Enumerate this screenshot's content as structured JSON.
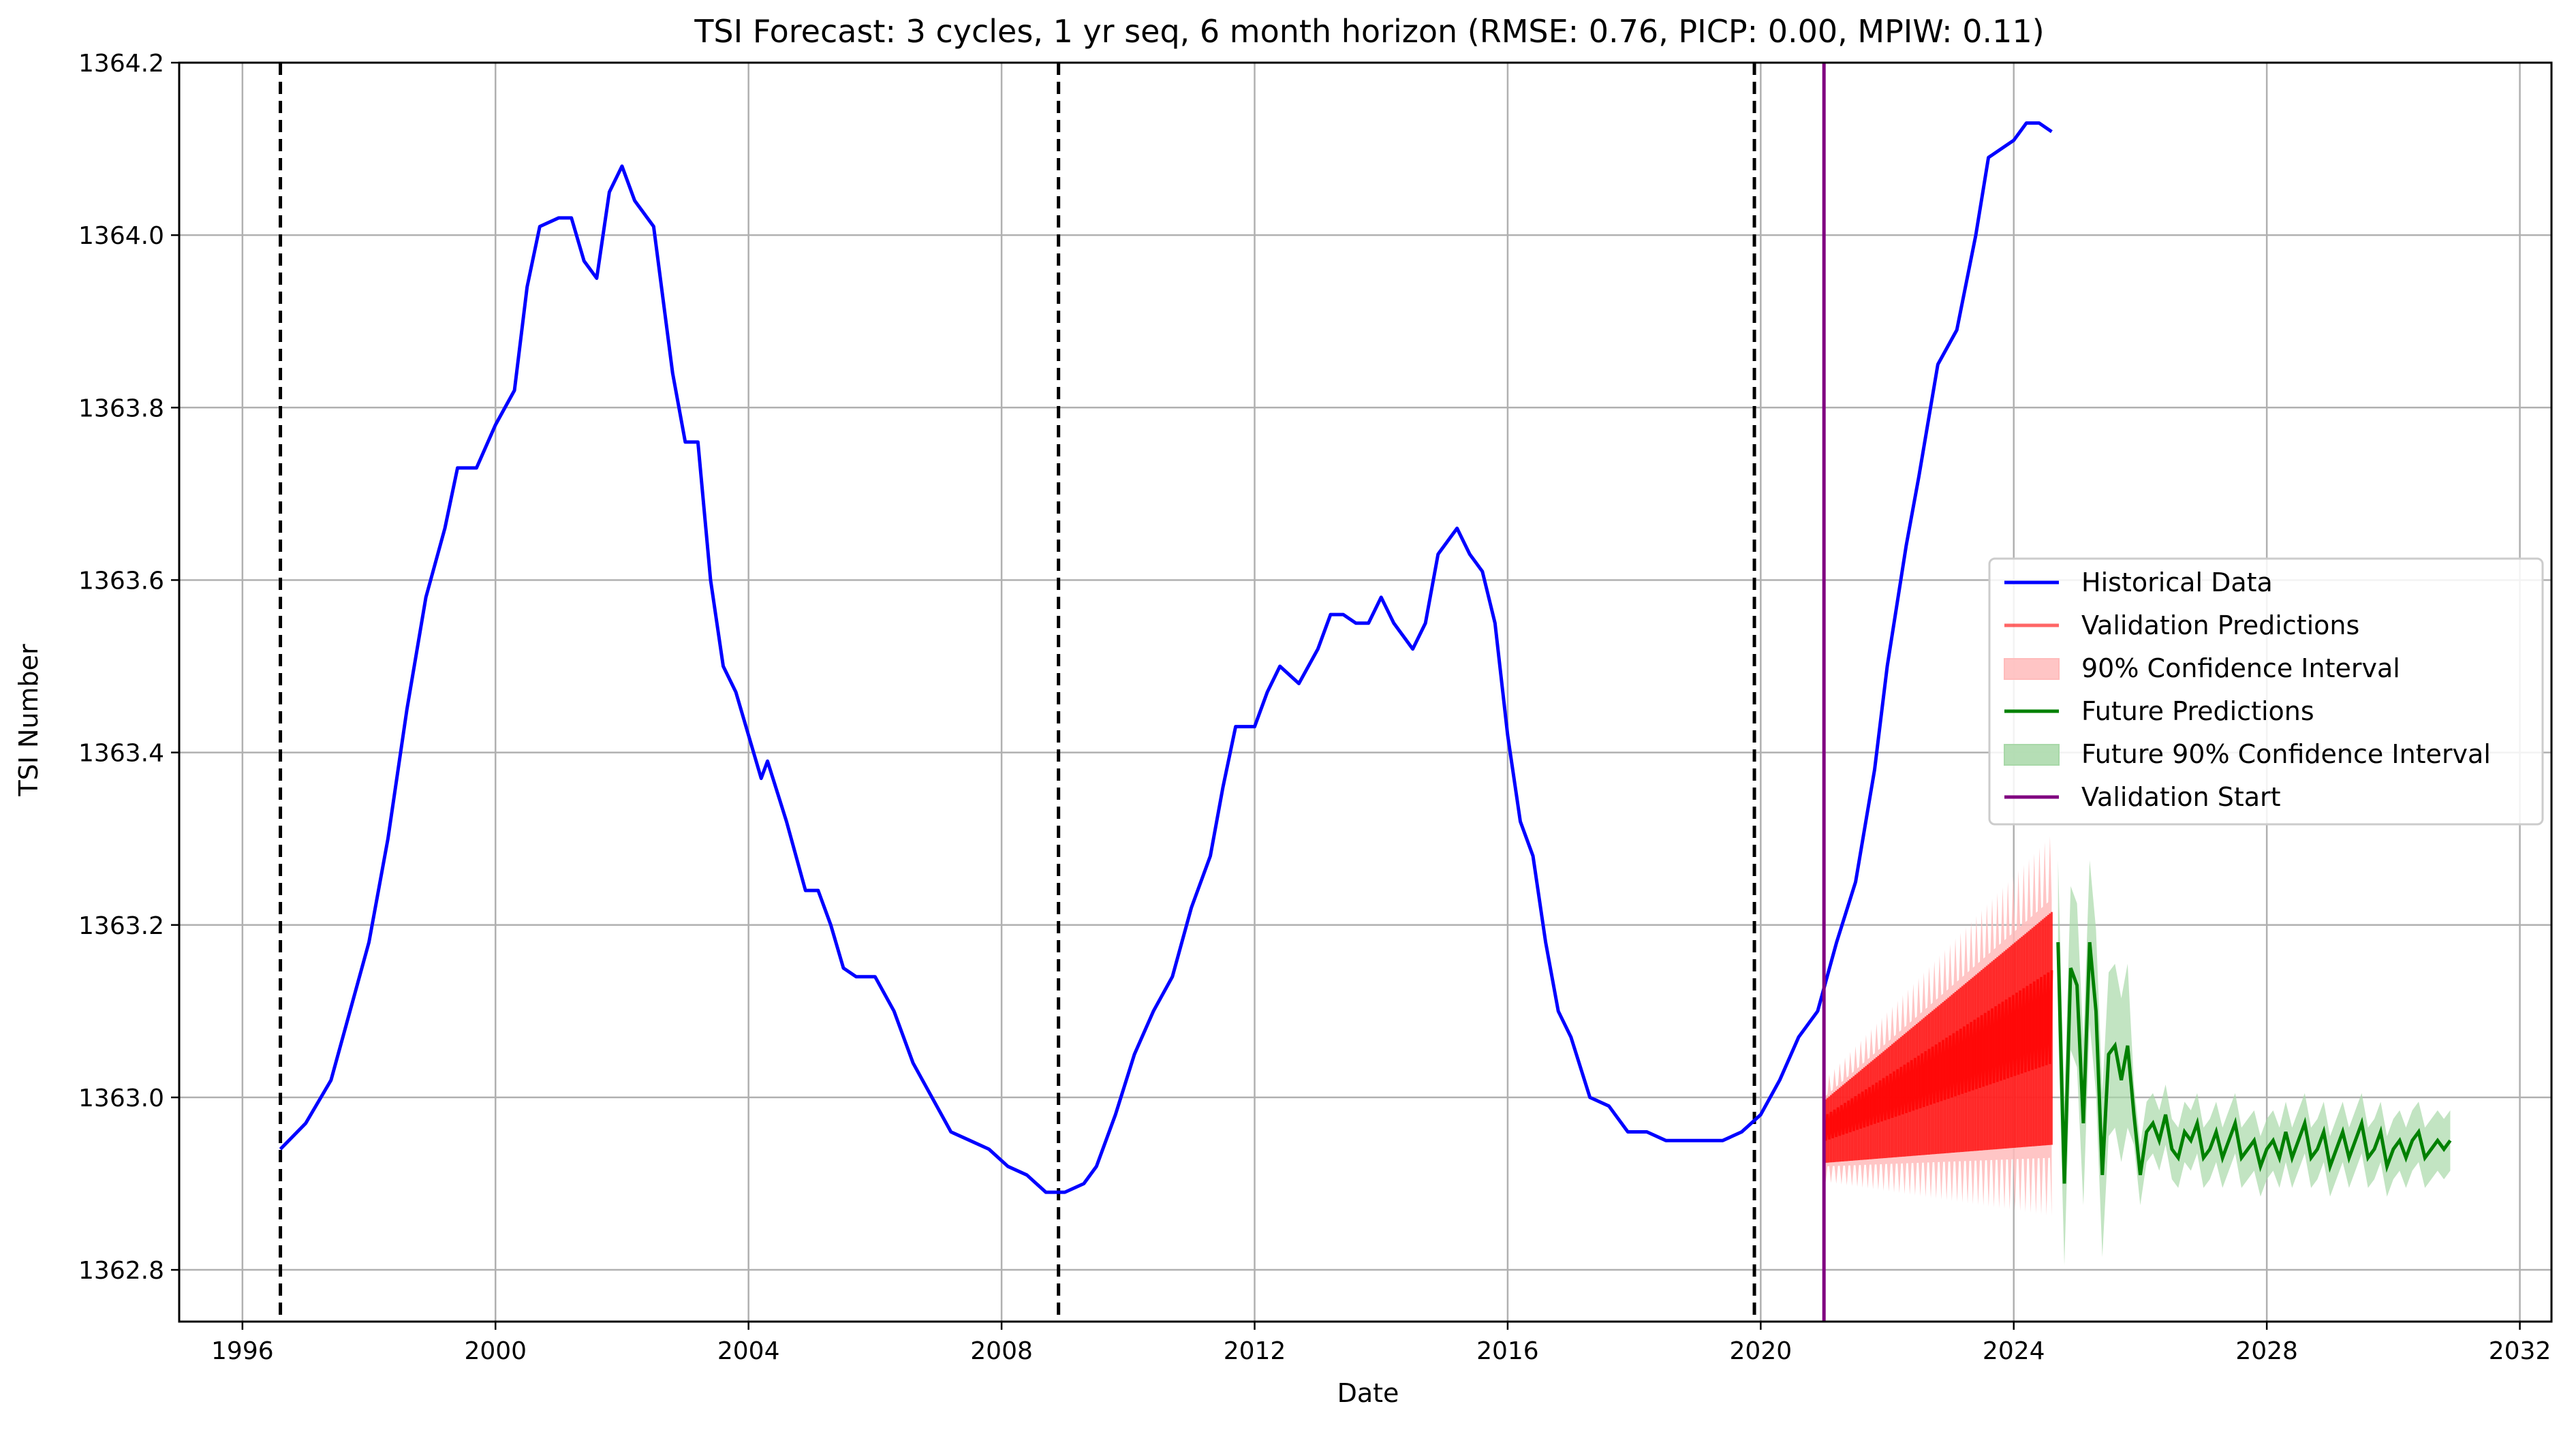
{
  "chart_data": {
    "type": "line",
    "title": "TSI Forecast: 3 cycles, 1 yr seq, 6 month horizon (RMSE: 0.76, PICP: 0.00, MPIW: 0.11)",
    "xlabel": "Date",
    "ylabel": "TSI Number",
    "xlim": [
      1995.0,
      2032.5
    ],
    "ylim": [
      1362.74,
      1364.2
    ],
    "x_ticks": [
      1996,
      2000,
      2004,
      2008,
      2012,
      2016,
      2020,
      2024,
      2028,
      2032
    ],
    "y_ticks": [
      1362.8,
      1363.0,
      1363.2,
      1363.4,
      1363.6,
      1363.8,
      1364.0,
      1364.2
    ],
    "y_tick_labels": [
      "1362.8",
      "1363.0",
      "1363.2",
      "1363.4",
      "1363.6",
      "1363.8",
      "1364.0",
      "1364.2"
    ],
    "grid": true,
    "legend_position": "center-right",
    "cycle_markers": [
      1996.6,
      2008.9,
      2019.9
    ],
    "validation_start": 2021.0,
    "series": [
      {
        "name": "Historical Data",
        "color": "#0000ff",
        "points": [
          [
            1996.6,
            1362.94
          ],
          [
            1997.0,
            1362.97
          ],
          [
            1997.4,
            1363.02
          ],
          [
            1997.7,
            1363.1
          ],
          [
            1998.0,
            1363.18
          ],
          [
            1998.3,
            1363.3
          ],
          [
            1998.6,
            1363.45
          ],
          [
            1998.9,
            1363.58
          ],
          [
            1999.2,
            1363.66
          ],
          [
            1999.4,
            1363.73
          ],
          [
            1999.7,
            1363.73
          ],
          [
            2000.0,
            1363.78
          ],
          [
            2000.3,
            1363.82
          ],
          [
            2000.5,
            1363.94
          ],
          [
            2000.7,
            1364.01
          ],
          [
            2001.0,
            1364.02
          ],
          [
            2001.2,
            1364.02
          ],
          [
            2001.4,
            1363.97
          ],
          [
            2001.6,
            1363.95
          ],
          [
            2001.8,
            1364.05
          ],
          [
            2002.0,
            1364.08
          ],
          [
            2002.2,
            1364.04
          ],
          [
            2002.5,
            1364.01
          ],
          [
            2002.8,
            1363.84
          ],
          [
            2003.0,
            1363.76
          ],
          [
            2003.2,
            1363.76
          ],
          [
            2003.4,
            1363.6
          ],
          [
            2003.6,
            1363.5
          ],
          [
            2003.8,
            1363.47
          ],
          [
            2004.0,
            1363.42
          ],
          [
            2004.2,
            1363.37
          ],
          [
            2004.3,
            1363.39
          ],
          [
            2004.6,
            1363.32
          ],
          [
            2004.9,
            1363.24
          ],
          [
            2005.1,
            1363.24
          ],
          [
            2005.3,
            1363.2
          ],
          [
            2005.5,
            1363.15
          ],
          [
            2005.7,
            1363.14
          ],
          [
            2006.0,
            1363.14
          ],
          [
            2006.3,
            1363.1
          ],
          [
            2006.6,
            1363.04
          ],
          [
            2006.9,
            1363.0
          ],
          [
            2007.2,
            1362.96
          ],
          [
            2007.5,
            1362.95
          ],
          [
            2007.8,
            1362.94
          ],
          [
            2008.1,
            1362.92
          ],
          [
            2008.4,
            1362.91
          ],
          [
            2008.7,
            1362.89
          ],
          [
            2009.0,
            1362.89
          ],
          [
            2009.3,
            1362.9
          ],
          [
            2009.5,
            1362.92
          ],
          [
            2009.8,
            1362.98
          ],
          [
            2010.1,
            1363.05
          ],
          [
            2010.4,
            1363.1
          ],
          [
            2010.7,
            1363.14
          ],
          [
            2011.0,
            1363.22
          ],
          [
            2011.3,
            1363.28
          ],
          [
            2011.5,
            1363.36
          ],
          [
            2011.7,
            1363.43
          ],
          [
            2012.0,
            1363.43
          ],
          [
            2012.2,
            1363.47
          ],
          [
            2012.4,
            1363.5
          ],
          [
            2012.7,
            1363.48
          ],
          [
            2013.0,
            1363.52
          ],
          [
            2013.2,
            1363.56
          ],
          [
            2013.4,
            1363.56
          ],
          [
            2013.6,
            1363.55
          ],
          [
            2013.8,
            1363.55
          ],
          [
            2014.0,
            1363.58
          ],
          [
            2014.2,
            1363.55
          ],
          [
            2014.5,
            1363.52
          ],
          [
            2014.7,
            1363.55
          ],
          [
            2014.9,
            1363.63
          ],
          [
            2015.1,
            1363.65
          ],
          [
            2015.2,
            1363.66
          ],
          [
            2015.4,
            1363.63
          ],
          [
            2015.6,
            1363.61
          ],
          [
            2015.8,
            1363.55
          ],
          [
            2016.0,
            1363.42
          ],
          [
            2016.2,
            1363.32
          ],
          [
            2016.4,
            1363.28
          ],
          [
            2016.6,
            1363.18
          ],
          [
            2016.8,
            1363.1
          ],
          [
            2017.0,
            1363.07
          ],
          [
            2017.3,
            1363.0
          ],
          [
            2017.6,
            1362.99
          ],
          [
            2017.9,
            1362.96
          ],
          [
            2018.2,
            1362.96
          ],
          [
            2018.5,
            1362.95
          ],
          [
            2018.8,
            1362.95
          ],
          [
            2019.1,
            1362.95
          ],
          [
            2019.4,
            1362.95
          ],
          [
            2019.7,
            1362.96
          ],
          [
            2020.0,
            1362.98
          ],
          [
            2020.3,
            1363.02
          ],
          [
            2020.6,
            1363.07
          ],
          [
            2020.9,
            1363.1
          ],
          [
            2021.2,
            1363.18
          ],
          [
            2021.5,
            1363.25
          ],
          [
            2021.8,
            1363.38
          ],
          [
            2022.0,
            1363.5
          ],
          [
            2022.3,
            1363.64
          ],
          [
            2022.5,
            1363.72
          ],
          [
            2022.8,
            1363.85
          ],
          [
            2023.1,
            1363.89
          ],
          [
            2023.4,
            1364.0
          ],
          [
            2023.6,
            1364.09
          ],
          [
            2023.8,
            1364.1
          ],
          [
            2024.0,
            1364.11
          ],
          [
            2024.2,
            1364.13
          ],
          [
            2024.4,
            1364.13
          ],
          [
            2024.6,
            1364.12
          ]
        ]
      },
      {
        "name": "Validation Predictions",
        "color": "#ff0000",
        "x_range": [
          2021.0,
          2024.6
        ],
        "center_start": 1362.96,
        "center_end": 1363.08,
        "spread_start": 0.04,
        "spread_end": 0.15
      },
      {
        "name": "90% Confidence Interval",
        "color": "#ffbbbb"
      },
      {
        "name": "Future Predictions",
        "color": "#008000",
        "points": [
          [
            2024.7,
            1363.18
          ],
          [
            2024.8,
            1362.9
          ],
          [
            2024.9,
            1363.15
          ],
          [
            2025.0,
            1363.13
          ],
          [
            2025.1,
            1362.97
          ],
          [
            2025.2,
            1363.18
          ],
          [
            2025.3,
            1363.1
          ],
          [
            2025.4,
            1362.91
          ],
          [
            2025.5,
            1363.05
          ],
          [
            2025.6,
            1363.06
          ],
          [
            2025.7,
            1363.02
          ],
          [
            2025.8,
            1363.06
          ],
          [
            2025.9,
            1362.98
          ],
          [
            2026.0,
            1362.91
          ],
          [
            2026.1,
            1362.96
          ],
          [
            2026.2,
            1362.97
          ],
          [
            2026.3,
            1362.95
          ],
          [
            2026.4,
            1362.98
          ],
          [
            2026.5,
            1362.94
          ],
          [
            2026.6,
            1362.93
          ],
          [
            2026.7,
            1362.96
          ],
          [
            2026.8,
            1362.95
          ],
          [
            2026.9,
            1362.97
          ],
          [
            2027.0,
            1362.93
          ],
          [
            2027.1,
            1362.94
          ],
          [
            2027.2,
            1362.96
          ],
          [
            2027.3,
            1362.93
          ],
          [
            2027.4,
            1362.95
          ],
          [
            2027.5,
            1362.97
          ],
          [
            2027.6,
            1362.93
          ],
          [
            2027.7,
            1362.94
          ],
          [
            2027.8,
            1362.95
          ],
          [
            2027.9,
            1362.92
          ],
          [
            2028.0,
            1362.94
          ],
          [
            2028.1,
            1362.95
          ],
          [
            2028.2,
            1362.93
          ],
          [
            2028.3,
            1362.96
          ],
          [
            2028.4,
            1362.93
          ],
          [
            2028.5,
            1362.95
          ],
          [
            2028.6,
            1362.97
          ],
          [
            2028.7,
            1362.93
          ],
          [
            2028.8,
            1362.94
          ],
          [
            2028.9,
            1362.96
          ],
          [
            2029.0,
            1362.92
          ],
          [
            2029.1,
            1362.94
          ],
          [
            2029.2,
            1362.96
          ],
          [
            2029.3,
            1362.93
          ],
          [
            2029.4,
            1362.95
          ],
          [
            2029.5,
            1362.97
          ],
          [
            2029.6,
            1362.93
          ],
          [
            2029.7,
            1362.94
          ],
          [
            2029.8,
            1362.96
          ],
          [
            2029.9,
            1362.92
          ],
          [
            2030.0,
            1362.94
          ],
          [
            2030.1,
            1362.95
          ],
          [
            2030.2,
            1362.93
          ],
          [
            2030.3,
            1362.95
          ],
          [
            2030.4,
            1362.96
          ],
          [
            2030.5,
            1362.93
          ],
          [
            2030.6,
            1362.94
          ],
          [
            2030.7,
            1362.95
          ],
          [
            2030.8,
            1362.94
          ],
          [
            2030.9,
            1362.95
          ]
        ],
        "interval_half_width": 0.035
      },
      {
        "name": "Future 90% Confidence Interval",
        "color": "#a8d8a8"
      },
      {
        "name": "Validation Start",
        "color": "#800080"
      }
    ]
  }
}
